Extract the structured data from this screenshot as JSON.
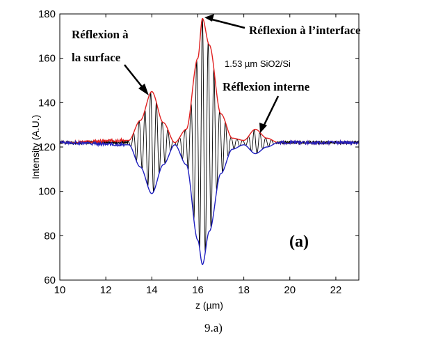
{
  "chart_data": {
    "type": "line",
    "xlabel": "z (µm)",
    "ylabel": "Intensity (A.U.)",
    "xlim": [
      10,
      23
    ],
    "ylim": [
      60,
      180
    ],
    "x_ticks": [
      10,
      12,
      14,
      16,
      18,
      20,
      22
    ],
    "y_ticks": [
      60,
      80,
      100,
      120,
      140,
      160,
      180
    ],
    "grid": false,
    "baseline": 122,
    "signal_range": [
      13.0,
      19.4
    ],
    "fringe_period": 0.25,
    "series": [
      {
        "role": "signal",
        "color": "#000000"
      },
      {
        "role": "upper-envelope",
        "color": "#e02020",
        "x": [
          10,
          13.0,
          13.5,
          14.0,
          14.5,
          15.0,
          15.5,
          16.0,
          16.2,
          16.5,
          17.0,
          17.5,
          18.0,
          18.5,
          19.0,
          19.5,
          23
        ],
        "y": [
          122,
          123,
          132,
          145,
          131,
          122,
          128,
          160,
          178,
          166,
          135,
          124,
          123,
          128,
          124,
          122,
          122
        ]
      },
      {
        "role": "lower-envelope",
        "color": "#2020c0",
        "x": [
          10,
          13.0,
          13.5,
          14.0,
          14.5,
          15.0,
          15.5,
          16.0,
          16.2,
          16.5,
          17.0,
          17.5,
          18.0,
          18.5,
          19.0,
          19.5,
          23
        ],
        "y": [
          122,
          121,
          111,
          99,
          112,
          121,
          112,
          78,
          67,
          82,
          108,
          119,
          121,
          117,
          120,
          122,
          122
        ]
      }
    ],
    "annotations": [
      {
        "id": "surface",
        "lines": [
          "Réflexion à",
          "la surface"
        ]
      },
      {
        "id": "interface",
        "lines": [
          "Réflexion à l’interface"
        ]
      },
      {
        "id": "sample",
        "lines": [
          "1.53 µm SiO2/Si"
        ]
      },
      {
        "id": "internal",
        "lines": [
          "Réflexion interne"
        ]
      }
    ],
    "panel_label": "(a)"
  },
  "caption": "9.a)"
}
